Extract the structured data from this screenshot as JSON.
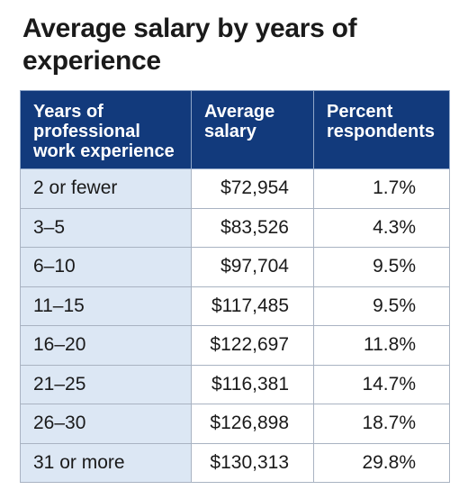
{
  "title": "Average salary by years of experience",
  "chart_data": {
    "type": "table",
    "title": "Average salary by years of experience",
    "columns": [
      "Years of professional work experience",
      "Average salary",
      "Percent respondents"
    ],
    "rows": [
      {
        "experience": "2 or fewer",
        "salary": "$72,954",
        "percent": "1.7%"
      },
      {
        "experience": "3–5",
        "salary": "$83,526",
        "percent": "4.3%"
      },
      {
        "experience": "6–10",
        "salary": "$97,704",
        "percent": "9.5%"
      },
      {
        "experience": "11–15",
        "salary": "$117,485",
        "percent": "9.5%"
      },
      {
        "experience": "16–20",
        "salary": "$122,697",
        "percent": "11.8%"
      },
      {
        "experience": "21–25",
        "salary": "$116,381",
        "percent": "14.7%"
      },
      {
        "experience": "26–30",
        "salary": "$126,898",
        "percent": "18.7%"
      },
      {
        "experience": "31 or more",
        "salary": "$130,313",
        "percent": "29.8%"
      }
    ]
  },
  "colors": {
    "header_bg": "#123a7c",
    "first_column_bg": "#dce7f4"
  }
}
